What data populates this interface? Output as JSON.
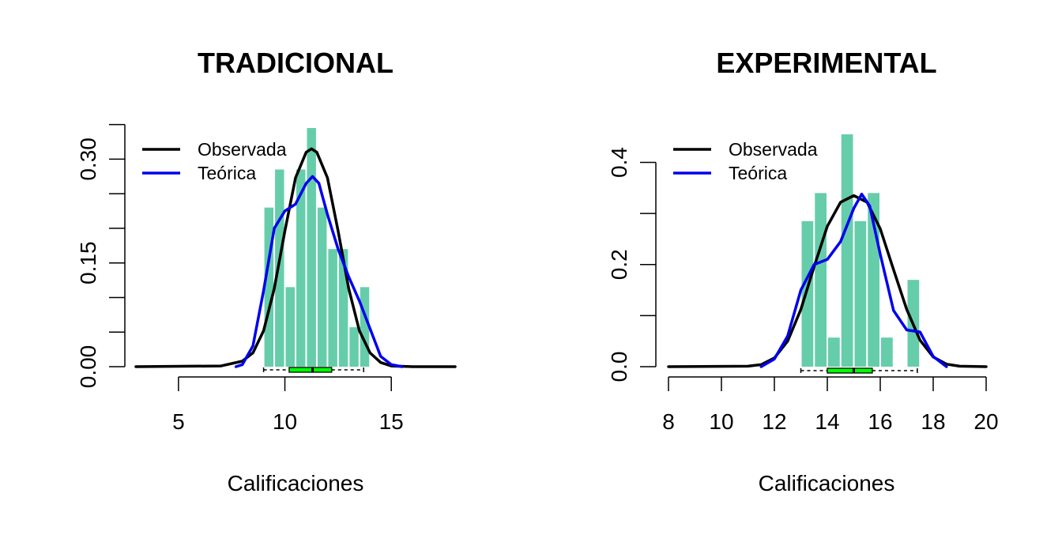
{
  "chart_data": [
    {
      "type": "histogram",
      "title": "TRADICIONAL",
      "xlabel": "Calificaciones",
      "ylabel": "",
      "xlim": [
        3,
        18
      ],
      "ylim": [
        0,
        0.345
      ],
      "xticks": [
        5,
        10,
        15
      ],
      "yticks": [
        0.0,
        0.05,
        0.1,
        0.15,
        0.2,
        0.25,
        0.3,
        0.35
      ],
      "ytick_labels": [
        "0.00",
        "0.15",
        "0.30"
      ],
      "ytick_labeled_values": [
        0.0,
        0.15,
        0.3
      ],
      "bar_color": "#66CDAA",
      "bins": [
        {
          "from": 9.0,
          "to": 9.5,
          "density": 0.23
        },
        {
          "from": 9.5,
          "to": 10.0,
          "density": 0.285
        },
        {
          "from": 10.0,
          "to": 10.5,
          "density": 0.115
        },
        {
          "from": 10.5,
          "to": 11.0,
          "density": 0.285
        },
        {
          "from": 11.0,
          "to": 11.5,
          "density": 0.345
        },
        {
          "from": 11.5,
          "to": 12.0,
          "density": 0.23
        },
        {
          "from": 12.0,
          "to": 12.5,
          "density": 0.17
        },
        {
          "from": 12.5,
          "to": 13.0,
          "density": 0.17
        },
        {
          "from": 13.0,
          "to": 13.5,
          "density": 0.057
        },
        {
          "from": 13.5,
          "to": 14.0,
          "density": 0.115
        }
      ],
      "series": [
        {
          "name": "Observada",
          "color": "#000000",
          "x": [
            3,
            7,
            8,
            8.5,
            9,
            9.5,
            10,
            10.5,
            11,
            11.25,
            11.5,
            12,
            12.5,
            13,
            13.5,
            14,
            14.5,
            15,
            16,
            18
          ],
          "y": [
            0,
            0.001,
            0.008,
            0.02,
            0.052,
            0.113,
            0.196,
            0.273,
            0.31,
            0.315,
            0.31,
            0.273,
            0.196,
            0.113,
            0.052,
            0.02,
            0.006,
            0.001,
            0,
            0
          ]
        },
        {
          "name": "Teórica",
          "color": "#0000EE",
          "x": [
            7.7,
            8,
            8.5,
            9,
            9.5,
            10,
            10.5,
            11,
            11.3,
            11.6,
            12,
            12.5,
            13,
            13.5,
            14,
            14.5,
            15,
            15.5
          ],
          "y": [
            0.0,
            0.003,
            0.03,
            0.11,
            0.2,
            0.225,
            0.235,
            0.265,
            0.275,
            0.265,
            0.22,
            0.17,
            0.13,
            0.095,
            0.055,
            0.015,
            0.003,
            0.0
          ]
        }
      ],
      "boxplot": {
        "min": 9.0,
        "q1": 10.2,
        "median": 11.3,
        "q3": 12.2,
        "max": 13.7,
        "color": "#00FF00"
      },
      "legend_position": "top-left"
    },
    {
      "type": "histogram",
      "title": "EXPERIMENTAL",
      "xlabel": "Calificaciones",
      "ylabel": "",
      "xlim": [
        8,
        20
      ],
      "ylim": [
        0,
        0.455
      ],
      "xticks": [
        8,
        10,
        12,
        14,
        16,
        18,
        20
      ],
      "yticks": [
        0.0,
        0.1,
        0.2,
        0.3,
        0.4
      ],
      "ytick_labels": [
        "0.0",
        "0.2",
        "0.4"
      ],
      "ytick_labeled_values": [
        0.0,
        0.2,
        0.4
      ],
      "bar_color": "#66CDAA",
      "bins": [
        {
          "from": 13.0,
          "to": 13.5,
          "density": 0.285
        },
        {
          "from": 13.5,
          "to": 14.0,
          "density": 0.34
        },
        {
          "from": 14.0,
          "to": 14.5,
          "density": 0.057
        },
        {
          "from": 14.5,
          "to": 15.0,
          "density": 0.455
        },
        {
          "from": 15.0,
          "to": 15.5,
          "density": 0.285
        },
        {
          "from": 15.5,
          "to": 16.0,
          "density": 0.34
        },
        {
          "from": 16.0,
          "to": 16.5,
          "density": 0.057
        },
        {
          "from": 16.5,
          "to": 17.0,
          "density": 0.0
        },
        {
          "from": 17.0,
          "to": 17.5,
          "density": 0.17
        }
      ],
      "series": [
        {
          "name": "Observada",
          "color": "#000000",
          "x": [
            8,
            11,
            11.5,
            12,
            12.5,
            13,
            13.5,
            14,
            14.5,
            15,
            15.5,
            16,
            16.5,
            17,
            17.5,
            18,
            18.5,
            19,
            20
          ],
          "y": [
            0,
            0.001,
            0.004,
            0.017,
            0.05,
            0.112,
            0.196,
            0.275,
            0.322,
            0.335,
            0.322,
            0.27,
            0.19,
            0.112,
            0.052,
            0.019,
            0.005,
            0.001,
            0
          ]
        },
        {
          "name": "Teórica",
          "color": "#0000EE",
          "x": [
            11.5,
            12,
            12.5,
            13,
            13.5,
            14,
            14.5,
            15,
            15.3,
            15.6,
            16,
            16.5,
            17,
            17.5,
            18,
            18.5
          ],
          "y": [
            0.0,
            0.015,
            0.06,
            0.15,
            0.2,
            0.21,
            0.245,
            0.31,
            0.338,
            0.315,
            0.22,
            0.11,
            0.072,
            0.068,
            0.02,
            0.0
          ]
        }
      ],
      "boxplot": {
        "min": 13.0,
        "q1": 14.0,
        "median": 15.0,
        "q3": 15.7,
        "max": 17.4,
        "color": "#00FF00"
      },
      "legend_position": "top-left"
    }
  ]
}
